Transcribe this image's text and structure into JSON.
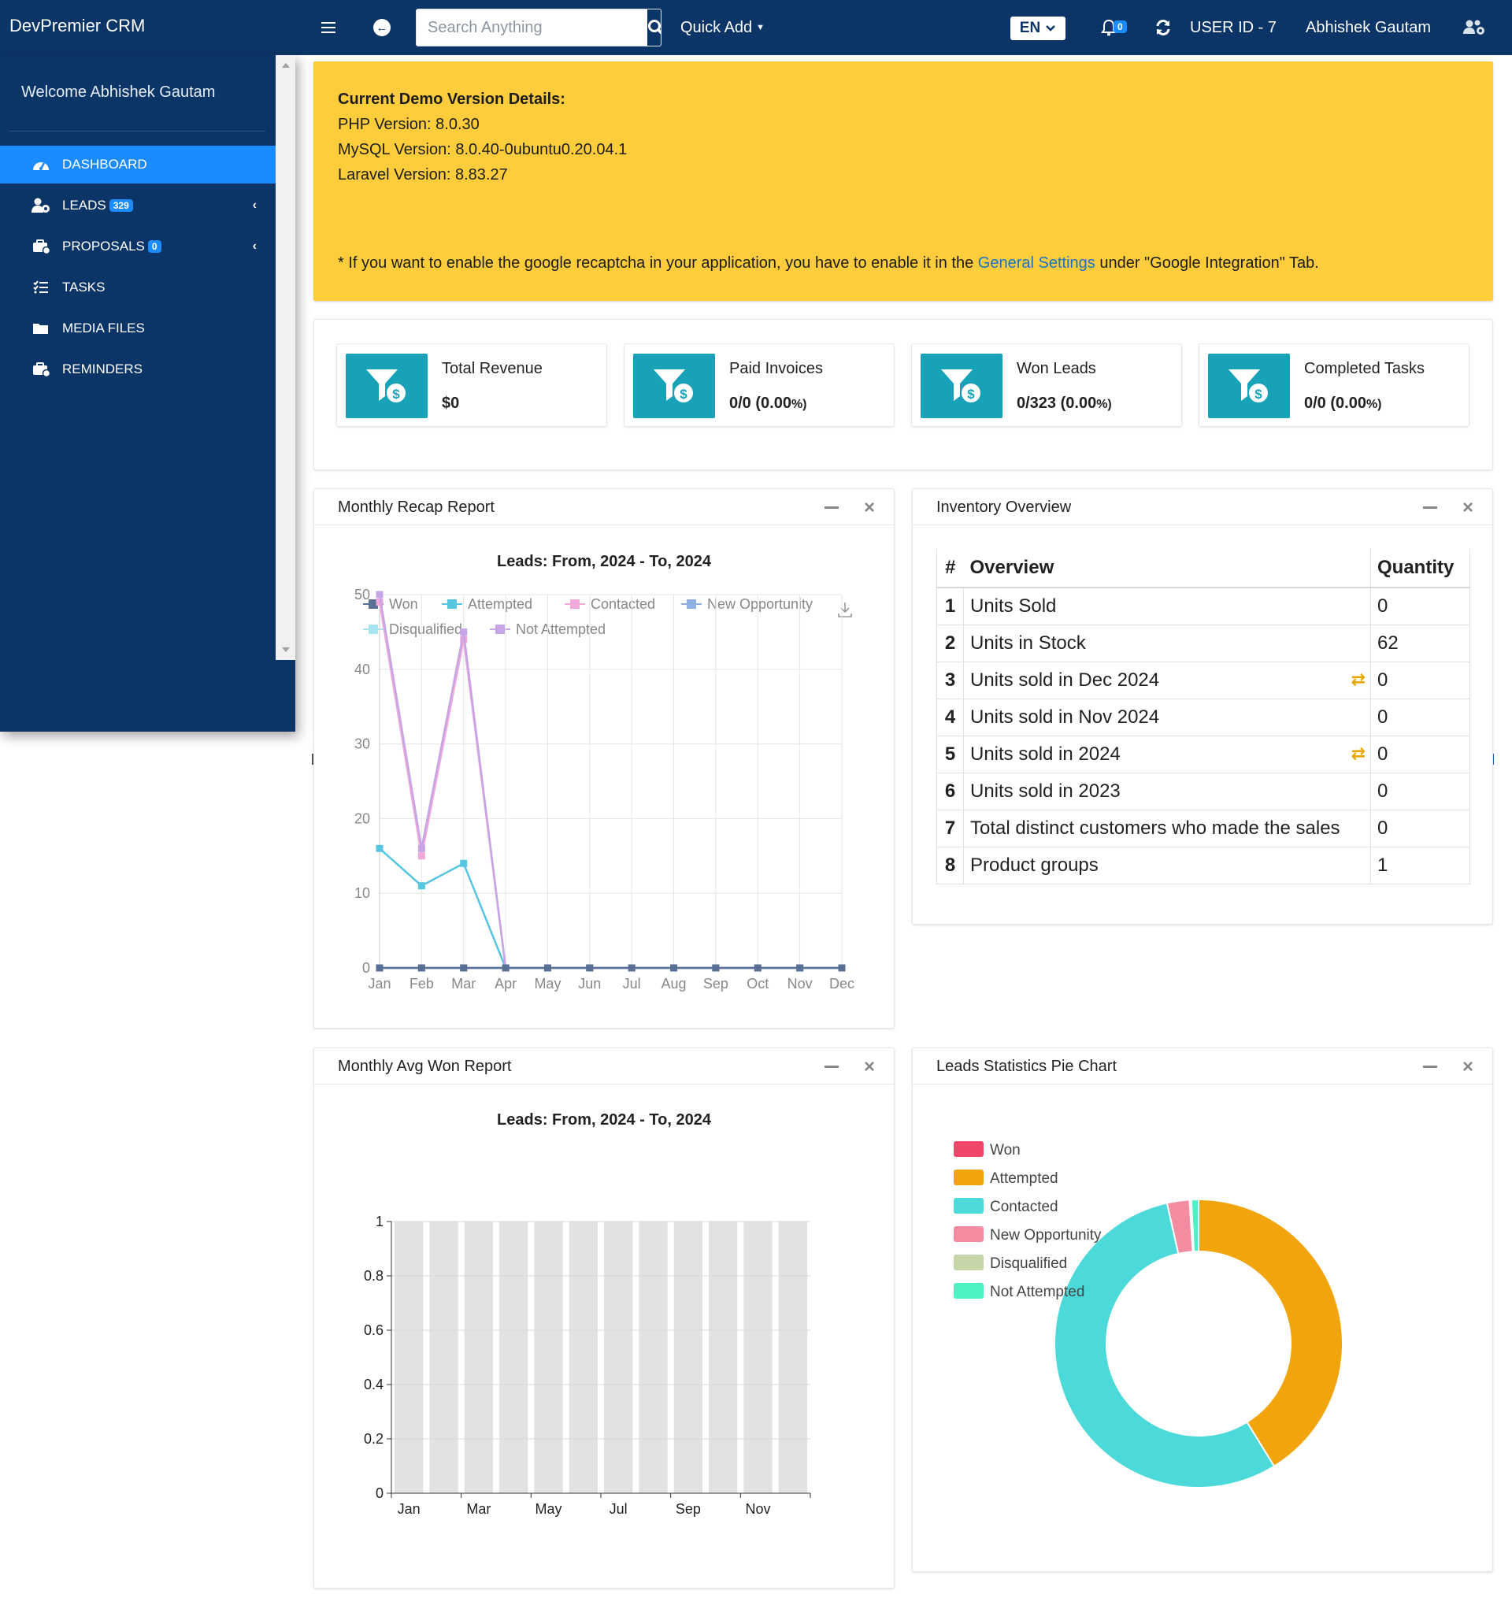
{
  "topbar": {
    "brand": "DevPremier CRM",
    "search_placeholder": "Search Anything",
    "quick_add": "Quick Add",
    "language": "EN",
    "notifications_count": "0",
    "user_id": "USER ID - 7",
    "user_name": "Abhishek Gautam"
  },
  "sidebar": {
    "welcome": "Welcome Abhishek Gautam",
    "items": [
      {
        "label": "DASHBOARD",
        "icon": "dashboard-icon",
        "badge": "",
        "active": true
      },
      {
        "label": "LEADS",
        "icon": "leads-icon",
        "badge": "329",
        "chevron": true
      },
      {
        "label": "PROPOSALS",
        "icon": "proposals-icon",
        "badge": "0",
        "chevron": true
      },
      {
        "label": "TASKS",
        "icon": "tasks-icon",
        "badge": ""
      },
      {
        "label": "MEDIA FILES",
        "icon": "folder-icon",
        "badge": ""
      },
      {
        "label": "REMINDERS",
        "icon": "reminders-icon",
        "badge": ""
      }
    ]
  },
  "alert": {
    "title": "Current Demo Version Details:",
    "php": "PHP Version: 8.0.30",
    "mysql": "MySQL Version: 8.0.40-0ubuntu0.20.04.1",
    "laravel": "Laravel Version: 8.83.27",
    "note_prefix": "* If you want to enable the google recaptcha in your application, you have to enable it in the",
    "note_link": "General Settings",
    "note_suffix": "under \"Google Integration\" Tab."
  },
  "stats": [
    {
      "label": "Total Revenue",
      "value": "$0",
      "pct": ""
    },
    {
      "label": "Paid Invoices",
      "value": "0/0 (0.00",
      "pct": "%)"
    },
    {
      "label": "Won Leads",
      "value": "0/323 (0.00",
      "pct": "%)"
    },
    {
      "label": "Completed Tasks",
      "value": "0/0 (0.00",
      "pct": "%)"
    }
  ],
  "panels": {
    "monthly_recap": "Monthly Recap Report",
    "inventory": "Inventory Overview",
    "monthly_avg_won": "Monthly Avg Won Report",
    "leads_pie": "Leads Statistics Pie Chart"
  },
  "inventory": {
    "headers": [
      "#",
      "Overview",
      "Quantity"
    ],
    "rows": [
      {
        "num": "1",
        "label": "Units Sold",
        "qty": "0",
        "swap": false
      },
      {
        "num": "2",
        "label": "Units in Stock",
        "qty": "62",
        "swap": false
      },
      {
        "num": "3",
        "label": "Units sold in Dec 2024",
        "qty": "0",
        "swap": true
      },
      {
        "num": "4",
        "label": "Units sold in Nov 2024",
        "qty": "0",
        "swap": false
      },
      {
        "num": "5",
        "label": "Units sold in 2024",
        "qty": "0",
        "swap": true
      },
      {
        "num": "6",
        "label": "Units sold in 2023",
        "qty": "0",
        "swap": false
      },
      {
        "num": "7",
        "label": "Total distinct customers who made the sales",
        "qty": "0",
        "swap": false
      },
      {
        "num": "8",
        "label": "Product groups",
        "qty": "1",
        "swap": false
      }
    ]
  },
  "chart_data": [
    {
      "type": "line",
      "title": "Leads: From, 2024 - To, 2024",
      "categories": [
        "Jan",
        "Feb",
        "Mar",
        "Apr",
        "May",
        "Jun",
        "Jul",
        "Aug",
        "Sep",
        "Oct",
        "Nov",
        "Dec"
      ],
      "ylim": [
        0,
        50
      ],
      "yticks": [
        0,
        10,
        20,
        30,
        40,
        50
      ],
      "grid": true,
      "legend_position": "top",
      "series": [
        {
          "name": "Won",
          "color": "#5a6f96",
          "values": [
            0,
            0,
            0,
            0,
            0,
            0,
            0,
            0,
            0,
            0,
            0,
            0
          ]
        },
        {
          "name": "Attempted",
          "color": "#56c6e0",
          "values": [
            16,
            11,
            14,
            0,
            0,
            0,
            0,
            0,
            0,
            0,
            0,
            0
          ]
        },
        {
          "name": "Contacted",
          "color": "#f0a9d8",
          "values": [
            49,
            15,
            44,
            0,
            0,
            0,
            0,
            0,
            0,
            0,
            0,
            0
          ]
        },
        {
          "name": "New Opportunity",
          "color": "#8fb0e0",
          "values": [
            0,
            0,
            0,
            0,
            0,
            0,
            0,
            0,
            0,
            0,
            0,
            0
          ]
        },
        {
          "name": "Disqualified",
          "color": "#a8e4f0",
          "values": [
            0,
            0,
            0,
            0,
            0,
            0,
            0,
            0,
            0,
            0,
            0,
            0
          ]
        },
        {
          "name": "Not Attempted",
          "color": "#c6a5e6",
          "values": [
            50,
            16,
            45,
            0,
            0,
            0,
            0,
            0,
            0,
            0,
            0,
            0
          ]
        }
      ]
    },
    {
      "type": "bar",
      "title": "Leads: From, 2024 - To, 2024",
      "categories": [
        "Jan",
        "Feb",
        "Mar",
        "Apr",
        "May",
        "Jun",
        "Jul",
        "Aug",
        "Sep",
        "Oct",
        "Nov",
        "Dec"
      ],
      "xtick_labels": [
        "Jan",
        "Mar",
        "May",
        "Jul",
        "Sep",
        "Nov"
      ],
      "ylim": [
        0,
        1
      ],
      "yticks": [
        0,
        0.2,
        0.4,
        0.6,
        0.8,
        1
      ],
      "values": [
        0,
        0,
        0,
        0,
        0,
        0,
        0,
        0,
        0,
        0,
        0,
        0
      ],
      "bar_background": "#e2e2e2"
    },
    {
      "type": "pie",
      "legend_position": "top-left",
      "slices": [
        {
          "name": "Won",
          "color": "#f2456b",
          "value": 0
        },
        {
          "name": "Attempted",
          "color": "#f2a40c",
          "value": 41
        },
        {
          "name": "Contacted",
          "color": "#4cd9d9",
          "value": 55
        },
        {
          "name": "New Opportunity",
          "color": "#f48c9f",
          "value": 2.5
        },
        {
          "name": "Disqualified",
          "color": "#c5d6a8",
          "value": 0.2
        },
        {
          "name": "Not Attempted",
          "color": "#4cf2c4",
          "value": 0.8
        }
      ]
    }
  ]
}
